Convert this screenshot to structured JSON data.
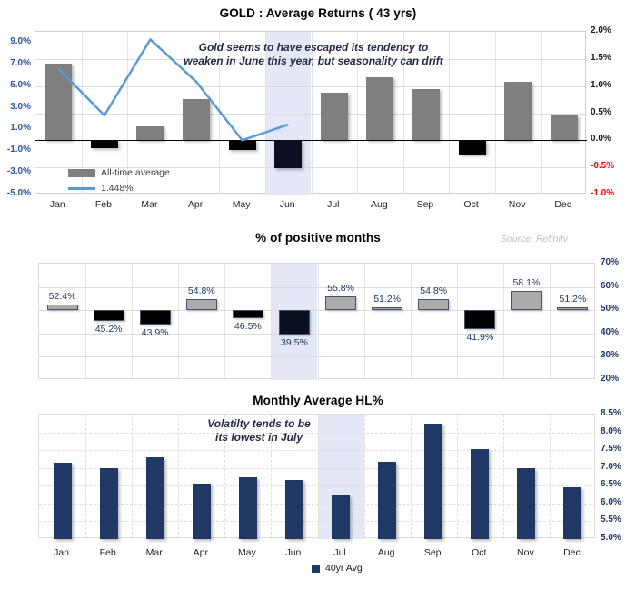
{
  "colors": {
    "band": "#E3E7F6",
    "grid": "#DCDCDC",
    "bar_gray": "#7F7F7F",
    "bar_black": "#000000",
    "bar_black_highlight": "#0A0F22",
    "bar_mid_gray": "#ABABAB",
    "bar_border_slate": "#44546A",
    "bar_navy": "#1F3864",
    "line_blue": "#5B9BD5",
    "tick_blue": "#2F5597",
    "tick_navy": "#1F3864",
    "tick_black": "#1A1A1A",
    "tick_red": "#FF0000",
    "label_navy": "#1F3864"
  },
  "chart_data": [
    {
      "type": "bar",
      "subtype": "bar-and-line-dual-axis",
      "title": "GOLD : Average Returns ( 43 yrs)",
      "annotation": [
        "Gold seems to have escaped its tendency to",
        "weaken in June this year, but seasonality can drift"
      ],
      "categories": [
        "Jan",
        "Feb",
        "Mar",
        "Apr",
        "May",
        "Jun",
        "Jul",
        "Aug",
        "Sep",
        "Oct",
        "Nov",
        "Dec"
      ],
      "series": [
        {
          "name": "All-time average",
          "type": "bar",
          "axis": "left",
          "values": [
            7.1,
            -0.7,
            1.3,
            3.8,
            -0.9,
            -2.6,
            4.4,
            5.8,
            4.7,
            -1.3,
            5.4,
            2.3
          ]
        },
        {
          "name": "1.448%",
          "type": "line",
          "axis": "left",
          "values": [
            6.6,
            2.3,
            9.3,
            5.4,
            0.0,
            1.448
          ]
        }
      ],
      "left_axis": {
        "labels": [
          "9.0%",
          "7.0%",
          "5.0%",
          "3.0%",
          "1.0%",
          "-1.0%",
          "-3.0%",
          "-5.0%"
        ],
        "values": [
          9,
          7,
          5,
          3,
          1,
          -1,
          -3,
          -5
        ],
        "min": -5,
        "max": 10
      },
      "right_axis": {
        "labels": [
          "2.0%",
          "1.5%",
          "1.0%",
          "0.5%",
          "0.0%",
          "-0.5%",
          "-1.0%"
        ],
        "values": [
          2,
          1.5,
          1,
          0.5,
          0,
          -0.5,
          -1
        ],
        "min": -1,
        "max": 2
      },
      "legend": [
        {
          "label": "All-time average"
        },
        {
          "label": "1.448%"
        }
      ],
      "highlight_month": "Jun",
      "highlight_index": 5,
      "grid": "on",
      "legend_position": "inside-bottom-left"
    },
    {
      "type": "bar",
      "subtype": "floating-bars-from-baseline",
      "title": "% of positive months",
      "source": "Source: Refinitv",
      "categories": [
        "Jan",
        "Feb",
        "Mar",
        "Apr",
        "May",
        "Jun",
        "Jul",
        "Aug",
        "Sep",
        "Oct",
        "Nov",
        "Dec"
      ],
      "values": [
        52.4,
        45.2,
        43.9,
        54.8,
        46.5,
        39.5,
        55.8,
        51.2,
        54.8,
        41.9,
        58.1,
        51.2
      ],
      "labels": [
        "52.4%",
        "45.2%",
        "43.9%",
        "54.8%",
        "46.5%",
        "39.5%",
        "55.8%",
        "51.2%",
        "54.8%",
        "41.9%",
        "58.1%",
        "51.2%"
      ],
      "baseline": 50,
      "axis": {
        "labels": [
          "70%",
          "60%",
          "50%",
          "40%",
          "30%",
          "20%"
        ],
        "values": [
          70,
          60,
          50,
          40,
          30,
          20
        ],
        "min": 20,
        "max": 70
      },
      "highlight_month": "Jun",
      "highlight_index": 5,
      "grid": "on"
    },
    {
      "type": "bar",
      "title": "Monthly Average HL%",
      "annotation": [
        "Volatilty tends to be",
        "its lowest in July"
      ],
      "categories": [
        "Jan",
        "Feb",
        "Mar",
        "Apr",
        "May",
        "Jun",
        "Jul",
        "Aug",
        "Sep",
        "Oct",
        "Nov",
        "Dec"
      ],
      "values": [
        7.15,
        7.0,
        7.3,
        6.55,
        6.73,
        6.65,
        6.22,
        7.18,
        8.25,
        7.54,
        6.98,
        6.45
      ],
      "axis": {
        "labels": [
          "8.5%",
          "8.0%",
          "7.5%",
          "7.0%",
          "6.5%",
          "6.0%",
          "5.5%",
          "5.0%"
        ],
        "values": [
          8.5,
          8.0,
          7.5,
          7.0,
          6.5,
          6.0,
          5.5,
          5.0
        ],
        "min": 5.0,
        "max": 8.5
      },
      "legend": [
        {
          "label": "40yr Avg"
        }
      ],
      "highlight_month": "Jul",
      "highlight_index": 6,
      "grid": "on",
      "legend_position": "bottom-center"
    }
  ]
}
